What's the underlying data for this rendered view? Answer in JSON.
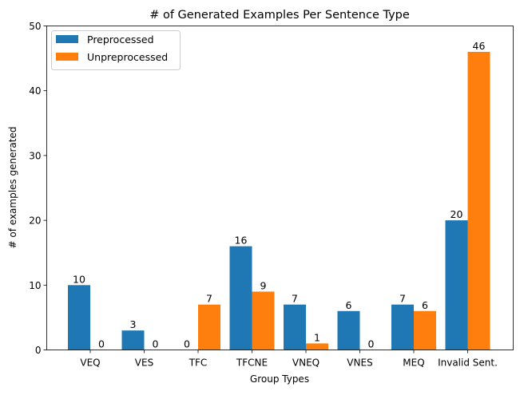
{
  "chart_data": {
    "type": "bar",
    "title": "# of Generated Examples Per Sentence Type",
    "xlabel": "Group Types",
    "ylabel": "# of examples generated",
    "ylim": [
      0,
      50
    ],
    "yticks": [
      0,
      10,
      20,
      30,
      40,
      50
    ],
    "categories": [
      "VEQ",
      "VES",
      "TFC",
      "TFCNE",
      "VNEQ",
      "VNES",
      "MEQ",
      "Invalid Sent."
    ],
    "series": [
      {
        "name": "Preprocessed",
        "color": "#1f77b4",
        "values": [
          10,
          3,
          0,
          16,
          7,
          6,
          7,
          20
        ]
      },
      {
        "name": "Unpreprocessed",
        "color": "#ff7f0e",
        "values": [
          0,
          0,
          7,
          9,
          1,
          0,
          6,
          46
        ]
      }
    ],
    "legend": "top-left",
    "grid": false
  }
}
